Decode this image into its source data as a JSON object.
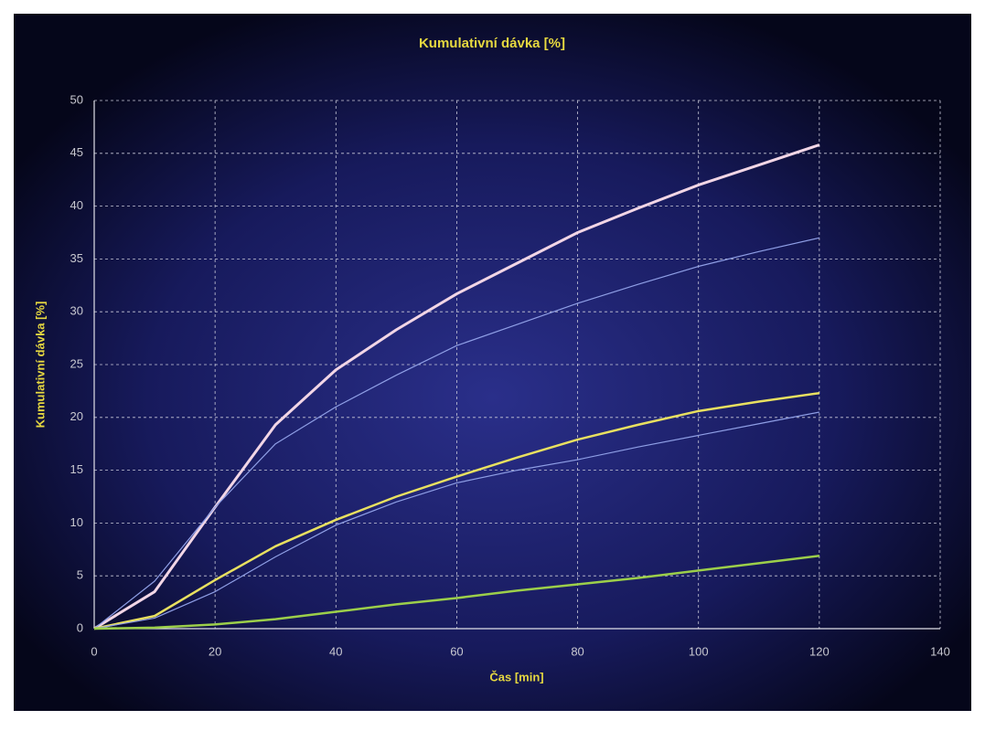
{
  "chart_data": {
    "type": "line",
    "title": "Kumulativní dávka [%]",
    "xlabel": "Čas [min]",
    "ylabel": "Kumulativní dávka [%]",
    "x": [
      0,
      10,
      20,
      30,
      40,
      50,
      60,
      70,
      80,
      90,
      100,
      110,
      120
    ],
    "series": [
      {
        "color": "#f2d6e6",
        "width": 3,
        "values": [
          0,
          3.5,
          11.5,
          19.3,
          24.5,
          28.3,
          31.7,
          34.6,
          37.5,
          39.8,
          42.0,
          43.9,
          45.8
        ]
      },
      {
        "color": "#8f9fe6",
        "width": 1.2,
        "values": [
          0,
          4.5,
          11.5,
          17.5,
          21.0,
          24.0,
          26.8,
          28.8,
          30.8,
          32.6,
          34.3,
          35.7,
          37.0
        ]
      },
      {
        "color": "#e8e060",
        "width": 2.5,
        "values": [
          0,
          1.2,
          4.6,
          7.8,
          10.3,
          12.5,
          14.4,
          16.2,
          17.9,
          19.3,
          20.6,
          21.5,
          22.3
        ]
      },
      {
        "color": "#8f9fe6",
        "width": 1.2,
        "values": [
          0,
          1.0,
          3.5,
          6.8,
          9.8,
          12.0,
          13.8,
          15.0,
          16.0,
          17.2,
          18.3,
          19.4,
          20.5
        ]
      },
      {
        "color": "#9ccf4a",
        "width": 2.5,
        "values": [
          0,
          0.1,
          0.4,
          0.9,
          1.6,
          2.3,
          2.9,
          3.6,
          4.2,
          4.8,
          5.5,
          6.2,
          6.9
        ]
      }
    ],
    "xlim": [
      0,
      140
    ],
    "xticks": [
      0,
      20,
      40,
      60,
      80,
      100,
      120,
      140
    ],
    "ylim": [
      0,
      50
    ],
    "yticks": [
      0,
      5,
      10,
      15,
      20,
      25,
      30,
      35,
      40,
      45,
      50
    ],
    "grid": true
  }
}
